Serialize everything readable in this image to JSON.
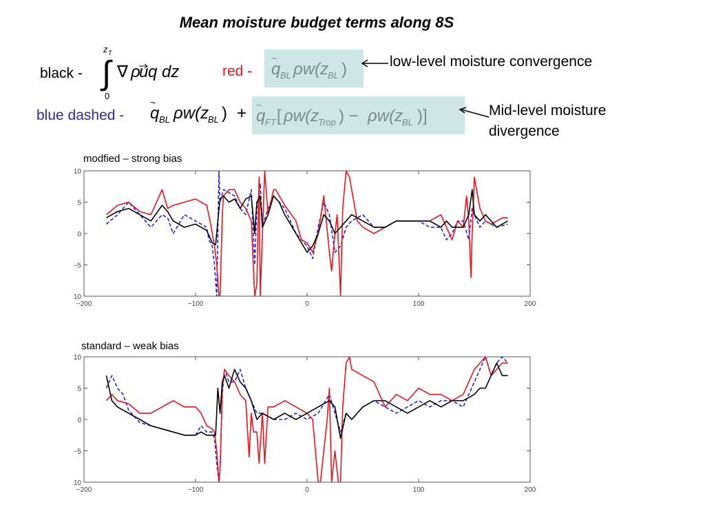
{
  "title": "Mean moisture budget terms along 8S",
  "legend": {
    "black_label": "black -",
    "red_label": "red -",
    "blue_label": "blue dashed -",
    "low_level_note": "low-level moisture convergence",
    "mid_level_note": "Mid-level moisture divergence",
    "colors": {
      "black": "#000000",
      "red": "#e8141e",
      "blue": "#2222dd",
      "box": "#cfe6e6"
    }
  },
  "chart_data": [
    {
      "type": "line",
      "title": "modfied – strong bias",
      "xlim": [
        -200,
        200
      ],
      "ylim": [
        -10,
        10
      ],
      "xticks": [
        -200,
        -100,
        0,
        100,
        200
      ],
      "yticks": [
        10,
        5,
        0,
        -5,
        10
      ],
      "grid": false,
      "series": [
        {
          "color": "black",
          "style": "solid",
          "x": [
            -180,
            -170,
            -160,
            -150,
            -140,
            -130,
            -125,
            -120,
            -110,
            -100,
            -90,
            -85,
            -82,
            -80,
            -78,
            -75,
            -70,
            -65,
            -60,
            -55,
            -50,
            -47,
            -45,
            -42,
            -40,
            -35,
            -30,
            -25,
            -20,
            -10,
            0,
            5,
            10,
            15,
            20,
            25,
            30,
            35,
            40,
            50,
            60,
            70,
            80,
            90,
            100,
            110,
            120,
            125,
            130,
            135,
            140,
            145,
            148,
            150,
            155,
            160,
            170,
            180
          ],
          "y": [
            2.5,
            3.5,
            4,
            3,
            2,
            4.5,
            3.5,
            2,
            1,
            1.5,
            0.5,
            -1.5,
            -1.8,
            2,
            5.5,
            6,
            5,
            5.5,
            4,
            5.5,
            6,
            0,
            5,
            6,
            1,
            3,
            6,
            5,
            3,
            0,
            -3,
            -2,
            0,
            3,
            2,
            0,
            1,
            2,
            3,
            2,
            1,
            1,
            2,
            2,
            2,
            2,
            1,
            2,
            1,
            1,
            1,
            3,
            7,
            3,
            2,
            3,
            1,
            2
          ]
        },
        {
          "color": "red",
          "style": "solid",
          "x": [
            -180,
            -170,
            -160,
            -150,
            -140,
            -130,
            -125,
            -120,
            -110,
            -100,
            -90,
            -87,
            -85,
            -83,
            -81,
            -79,
            -78,
            -76,
            -75,
            -70,
            -65,
            -60,
            -55,
            -50,
            -47,
            -45,
            -43,
            -42,
            -40,
            -38,
            -35,
            -30,
            -28,
            -25,
            -20,
            -10,
            -5,
            0,
            5,
            10,
            15,
            20,
            22,
            25,
            27,
            30,
            32,
            35,
            38,
            40,
            45,
            50,
            60,
            70,
            80,
            90,
            100,
            110,
            120,
            125,
            130,
            135,
            140,
            143,
            145,
            147,
            148,
            150,
            155,
            160,
            165,
            170,
            175,
            180
          ],
          "y": [
            3,
            4.5,
            5,
            3.5,
            3,
            7,
            4,
            4.5,
            5,
            5.5,
            4.5,
            2,
            0,
            -2,
            -5,
            -10,
            -10,
            3,
            6,
            7,
            7,
            5,
            4,
            2,
            -10,
            -8,
            9,
            -10,
            0,
            10,
            3,
            7,
            7,
            6,
            4.5,
            2,
            -1,
            -1.5,
            -3,
            0,
            6,
            -3,
            -6,
            0,
            3,
            -10,
            4,
            10,
            9,
            7,
            2,
            1,
            0,
            1,
            2,
            2,
            2,
            2,
            3,
            1,
            -1,
            2,
            1,
            6,
            2,
            -7,
            0,
            9,
            4,
            2,
            1.5,
            2,
            2.5,
            2.5
          ]
        },
        {
          "color": "blue",
          "style": "dashed",
          "x": [
            -180,
            -170,
            -160,
            -150,
            -140,
            -130,
            -125,
            -120,
            -110,
            -100,
            -90,
            -88,
            -85,
            -83,
            -81,
            -79,
            -78,
            -75,
            -70,
            -65,
            -60,
            -55,
            -50,
            -47,
            -45,
            -42,
            -40,
            -35,
            -30,
            -25,
            -20,
            -10,
            0,
            5,
            10,
            15,
            20,
            25,
            30,
            35,
            40,
            50,
            60,
            70,
            80,
            90,
            100,
            110,
            120,
            125,
            130,
            135,
            140,
            145,
            148,
            150,
            155,
            160,
            170,
            180
          ],
          "y": [
            1.5,
            3,
            5,
            3,
            1,
            3,
            2.5,
            0,
            3,
            2,
            1,
            -1,
            -2,
            -5,
            -10,
            10,
            5,
            7,
            6.5,
            6,
            4,
            3,
            7,
            -5,
            4,
            8,
            1,
            4,
            6,
            5,
            4,
            0,
            -2,
            -4,
            1,
            5,
            3,
            -3,
            -2,
            1,
            2,
            3,
            1,
            1,
            2,
            2,
            2,
            1,
            1,
            -1,
            0,
            2,
            2,
            -1,
            4,
            3,
            1,
            2,
            1,
            1.5
          ]
        }
      ]
    },
    {
      "type": "line",
      "title": "standard – weak bias",
      "xlim": [
        -200,
        200
      ],
      "ylim": [
        -10,
        10
      ],
      "xticks": [
        -200,
        -100,
        0,
        100,
        200
      ],
      "yticks": [
        10,
        5,
        0,
        -5,
        10
      ],
      "grid": false,
      "series": [
        {
          "color": "black",
          "style": "solid",
          "x": [
            -180,
            -175,
            -170,
            -160,
            -150,
            -140,
            -130,
            -120,
            -110,
            -100,
            -95,
            -90,
            -85,
            -82,
            -80,
            -78,
            -76,
            -74,
            -70,
            -65,
            -60,
            -55,
            -50,
            -45,
            -40,
            -30,
            -20,
            -10,
            0,
            10,
            20,
            25,
            30,
            35,
            40,
            50,
            60,
            70,
            80,
            90,
            100,
            110,
            120,
            130,
            140,
            150,
            155,
            160,
            165,
            170,
            175,
            180
          ],
          "y": [
            7,
            3,
            2,
            1,
            0,
            -1,
            -1.5,
            -2,
            -2.5,
            -2.5,
            -2,
            -2.5,
            -2.5,
            -2.5,
            5,
            1,
            6,
            7,
            5,
            8,
            6,
            5,
            3,
            0,
            1,
            0,
            1,
            0,
            1,
            2,
            3,
            2,
            -3,
            1,
            0,
            2,
            3,
            3,
            2,
            1,
            2,
            3,
            2,
            3,
            3,
            4,
            5,
            5,
            7,
            9,
            7,
            7
          ]
        },
        {
          "color": "red",
          "style": "solid",
          "x": [
            -180,
            -175,
            -170,
            -160,
            -150,
            -140,
            -130,
            -120,
            -110,
            -100,
            -95,
            -90,
            -85,
            -83,
            -81,
            -79,
            -78,
            -76,
            -74,
            -70,
            -65,
            -60,
            -55,
            -52,
            -50,
            -48,
            -45,
            -43,
            -40,
            -38,
            -35,
            -30,
            -20,
            -10,
            0,
            5,
            10,
            12,
            15,
            18,
            20,
            22,
            25,
            28,
            30,
            32,
            35,
            38,
            40,
            50,
            60,
            70,
            80,
            90,
            100,
            110,
            120,
            130,
            140,
            150,
            155,
            160,
            165,
            170,
            175,
            180
          ],
          "y": [
            3,
            4,
            3,
            2.5,
            1,
            1,
            2,
            3,
            2,
            2,
            1,
            -1,
            -1.5,
            -2,
            -5,
            -10,
            -8,
            5,
            8,
            7,
            6,
            4,
            3,
            -6,
            1,
            -2,
            -2,
            -7,
            1,
            -7,
            2,
            2,
            3,
            2,
            1,
            0,
            -10,
            -10,
            -5,
            0,
            5,
            -10,
            -5,
            -10,
            -10,
            2,
            9,
            10,
            8,
            7,
            6,
            2,
            4,
            3,
            5,
            4,
            4,
            3,
            4,
            8,
            9,
            10,
            7,
            8,
            9,
            9
          ]
        },
        {
          "color": "blue",
          "style": "dashed",
          "x": [
            -180,
            -175,
            -170,
            -165,
            -160,
            -150,
            -140,
            -130,
            -120,
            -110,
            -100,
            -95,
            -90,
            -85,
            -83,
            -81,
            -79,
            -78,
            -76,
            -74,
            -70,
            -65,
            -60,
            -55,
            -50,
            -45,
            -40,
            -30,
            -20,
            -10,
            0,
            10,
            20,
            25,
            30,
            35,
            40,
            50,
            60,
            70,
            80,
            90,
            100,
            110,
            120,
            130,
            140,
            150,
            155,
            160,
            165,
            170,
            175,
            180
          ],
          "y": [
            5,
            7,
            5,
            4,
            1.5,
            -0.5,
            -1,
            -1.5,
            -2,
            -2.5,
            -2.5,
            -1,
            -2,
            -2,
            -3,
            -7,
            -10,
            -8,
            4,
            8,
            6,
            6,
            8,
            5,
            3,
            1,
            1,
            0,
            0,
            1,
            0,
            1,
            4,
            1,
            -2,
            1,
            0,
            2,
            3,
            2,
            1,
            2,
            3,
            2,
            3,
            3,
            2,
            6,
            8,
            10,
            7,
            9,
            10,
            9
          ]
        }
      ]
    }
  ]
}
